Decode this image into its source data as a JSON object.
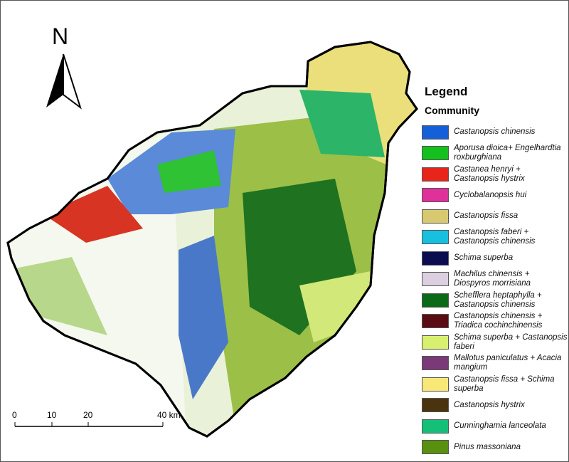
{
  "legend": {
    "title": "Legend",
    "subtitle": "Community",
    "items": [
      {
        "label": "Castanopsis chinensis",
        "color": "#1560d8"
      },
      {
        "label": "Aporusa dioica+ Engelhardtia roxburghiana",
        "color": "#14c01e"
      },
      {
        "label": "Castanea henryi + Castanopsis hystrix",
        "color": "#e8251a"
      },
      {
        "label": "Cyclobalanopsis hui",
        "color": "#e0309a"
      },
      {
        "label": "Castanopsis fissa",
        "color": "#d8c870"
      },
      {
        "label": "Castanopsis faberi + Castanopsis chinensis",
        "color": "#18c0e0"
      },
      {
        "label": "Schima superba",
        "color": "#0c0c50"
      },
      {
        "label": "Machilus chinensis + Diospyros morrisiana",
        "color": "#dccfe0"
      },
      {
        "label": "Schefflera heptaphylla + Castanopsis chinensis",
        "color": "#0a6a18"
      },
      {
        "label": "Castanopsis chinensis + Triadica cochinchinensis",
        "color": "#5a0c14"
      },
      {
        "label": "Schima superba + Castanopsis faberi",
        "color": "#d8f070"
      },
      {
        "label": "Mallotus paniculatus + Acacia mangium",
        "color": "#7a3a78"
      },
      {
        "label": "Castanopsis fissa + Schima superba",
        "color": "#f8e878"
      },
      {
        "label": "Castanopsis hystrix",
        "color": "#4a3410"
      },
      {
        "label": "Cunninghamia lanceolata",
        "color": "#14c078"
      },
      {
        "label": "Pinus massoniana",
        "color": "#5a9010"
      }
    ]
  },
  "north_arrow": {
    "label": "N"
  },
  "scale_bar": {
    "ticks": [
      "0",
      "10",
      "20",
      "40 km"
    ]
  }
}
